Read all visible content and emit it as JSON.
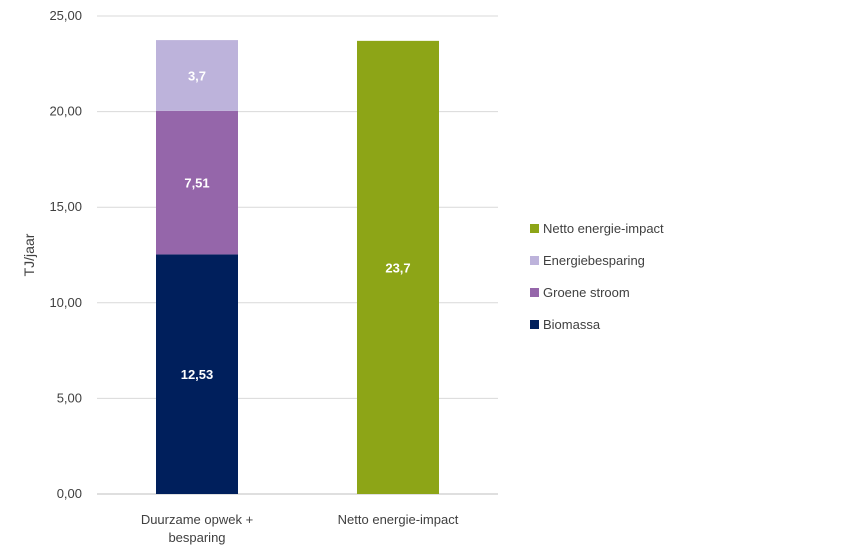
{
  "chart_data": {
    "type": "bar",
    "stacked": true,
    "categories": [
      [
        "Duurzame opwek +",
        "besparing"
      ],
      [
        "Netto energie-impact"
      ]
    ],
    "ylabel": "TJ/jaar",
    "ylim": [
      0,
      25
    ],
    "yticks": [
      "0,00",
      "5,00",
      "10,00",
      "15,00",
      "20,00",
      "25,00"
    ],
    "ytick_values": [
      0,
      5,
      10,
      15,
      20,
      25
    ],
    "grid": true,
    "legend_position": "right",
    "series": [
      {
        "name": "Biomassa",
        "color": "#001f5c",
        "values": [
          12.53,
          null
        ],
        "labels": [
          "12,53",
          ""
        ]
      },
      {
        "name": "Groene stroom",
        "color": "#9566aa",
        "values": [
          7.51,
          null
        ],
        "labels": [
          "7,51",
          ""
        ]
      },
      {
        "name": "Energiebesparing",
        "color": "#bdb3db",
        "values": [
          3.7,
          null
        ],
        "labels": [
          "3,7",
          ""
        ]
      },
      {
        "name": "Netto energie-impact",
        "color": "#8da517",
        "values": [
          null,
          23.7
        ],
        "labels": [
          "",
          "23,7"
        ]
      }
    ],
    "legend_order": [
      "Netto energie-impact",
      "Energiebesparing",
      "Groene stroom",
      "Biomassa"
    ]
  }
}
